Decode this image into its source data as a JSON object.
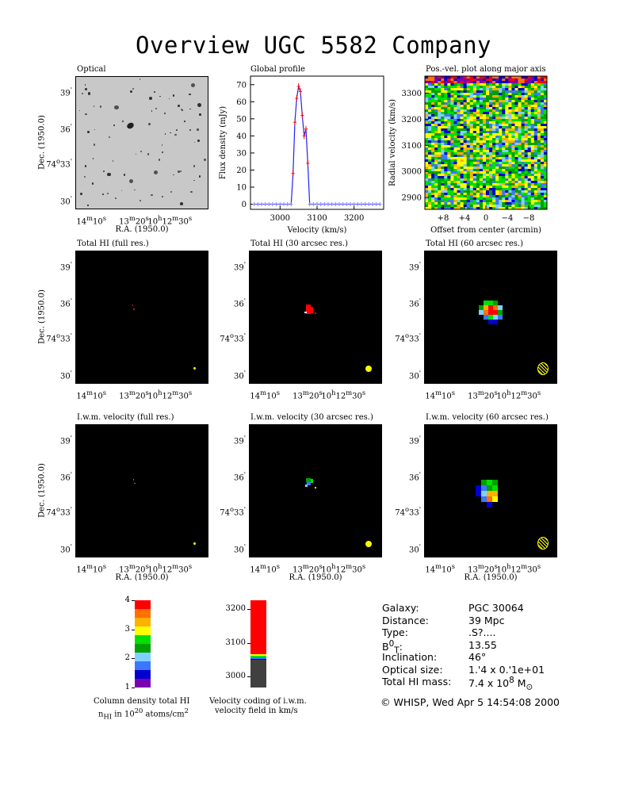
{
  "page_title": "Overview UGC 5582 Company",
  "panels": {
    "optical": "Optical",
    "global_profile": "Global profile",
    "pv": "Pos.-vel. plot along major axis",
    "hi_full": "Total HI (full res.)",
    "hi_30": "Total HI (30 arcsec res.)",
    "hi_60": "Total HI (60 arcsec res.)",
    "vel_full": "I.w.m. velocity (full res.)",
    "vel_30": "I.w.m. velocity (30 arcsec res.)",
    "vel_60": "I.w.m. velocity (60 arcsec res.)"
  },
  "axes": {
    "dec_label": "Dec. (1950.0)",
    "ra_label": "R.A. (1950.0)",
    "dec_ticks": [
      "39'",
      "36'",
      "74°33'",
      "30'"
    ],
    "ra_ticks": [
      "14m10s",
      "13m20s",
      "10h12m30s"
    ],
    "ra_ticks_html": {
      "t1": "14<sup>m</sup>10<sup>s</sup>",
      "t2": "13<sup>m</sup>20<sup>s</sup>",
      "t3": "10<sup>h</sup>12<sup>m</sup>30<sup>s</sup>"
    }
  },
  "chart_data": [
    {
      "type": "line",
      "title": "Global profile",
      "xlabel": "Velocity (km/s)",
      "ylabel": "Flux density (mJy)",
      "xlim": [
        2920,
        3280
      ],
      "ylim": [
        -3,
        75
      ],
      "xticks": [
        3000,
        3100,
        3200
      ],
      "yticks": [
        0,
        10,
        20,
        30,
        40,
        50,
        60,
        70
      ],
      "x": [
        2930,
        2940,
        2950,
        2960,
        2970,
        2980,
        2990,
        3000,
        3010,
        3020,
        3030,
        3035,
        3040,
        3045,
        3050,
        3055,
        3060,
        3065,
        3070,
        3075,
        3080,
        3090,
        3100,
        3110,
        3120,
        3130,
        3140,
        3150,
        3160,
        3170,
        3180,
        3190,
        3200,
        3210,
        3220,
        3230,
        3240,
        3250,
        3260,
        3270
      ],
      "y": [
        0,
        0,
        0,
        0,
        0,
        0,
        0,
        0,
        0,
        0,
        0,
        18,
        48,
        62,
        69,
        66,
        52,
        40,
        44,
        24,
        0,
        0,
        0,
        0,
        0,
        0,
        0,
        0,
        0,
        0,
        0,
        0,
        0,
        0,
        0,
        0,
        0,
        0,
        0,
        0
      ]
    },
    {
      "type": "heatmap",
      "title": "Pos.-vel. plot along major axis",
      "xlabel": "Offset from center (arcmin)",
      "ylabel": "Radial velocity (km/s)",
      "xticks": [
        "+8",
        "+4",
        "0",
        "−4",
        "−8"
      ],
      "yticks": [
        2900,
        3000,
        3100,
        3200,
        3300
      ]
    },
    {
      "type": "heatmap",
      "title": "Column density colour bar",
      "ticks": [
        1,
        2,
        3,
        4
      ],
      "caption1": "Column density total HI",
      "caption2_html": "n<sub>HI</sub> in 10<sup>20</sup> atoms/cm<sup>2</sup>"
    },
    {
      "type": "heatmap",
      "title": "Velocity colour bar",
      "ticks": [
        3000,
        3100,
        3200
      ],
      "caption1": "Velocity coding of i.w.m.",
      "caption2": "velocity field in km/s"
    }
  ],
  "info": {
    "rows": [
      {
        "key": "Galaxy:",
        "val": "PGC 30064"
      },
      {
        "key": "Distance:",
        "val": "39 Mpc"
      },
      {
        "key": "Type:",
        "val": ".S?...."
      },
      {
        "key_html": "B<sup>0</sup><sub>T</sub>:",
        "val": "13.55"
      },
      {
        "key": "Inclination:",
        "val": "46°"
      },
      {
        "key": "Optical size:",
        "val": "1.'4 x 0.'1e+01"
      },
      {
        "key": "Total HI mass:",
        "val_html": "7.4 x 10<sup>8</sup> M<sub>⊙</sub>"
      }
    ],
    "footer": "© WHISP, Wed Apr  5 14:54:08 2000"
  },
  "colors": {
    "cd": [
      "#7b00b0",
      "#0000d0",
      "#3a78ff",
      "#80d0ff",
      "#00a000",
      "#00e000",
      "#ffff00",
      "#ffb000",
      "#ff7000",
      "#ff0000"
    ],
    "beam": "#ffff00"
  }
}
